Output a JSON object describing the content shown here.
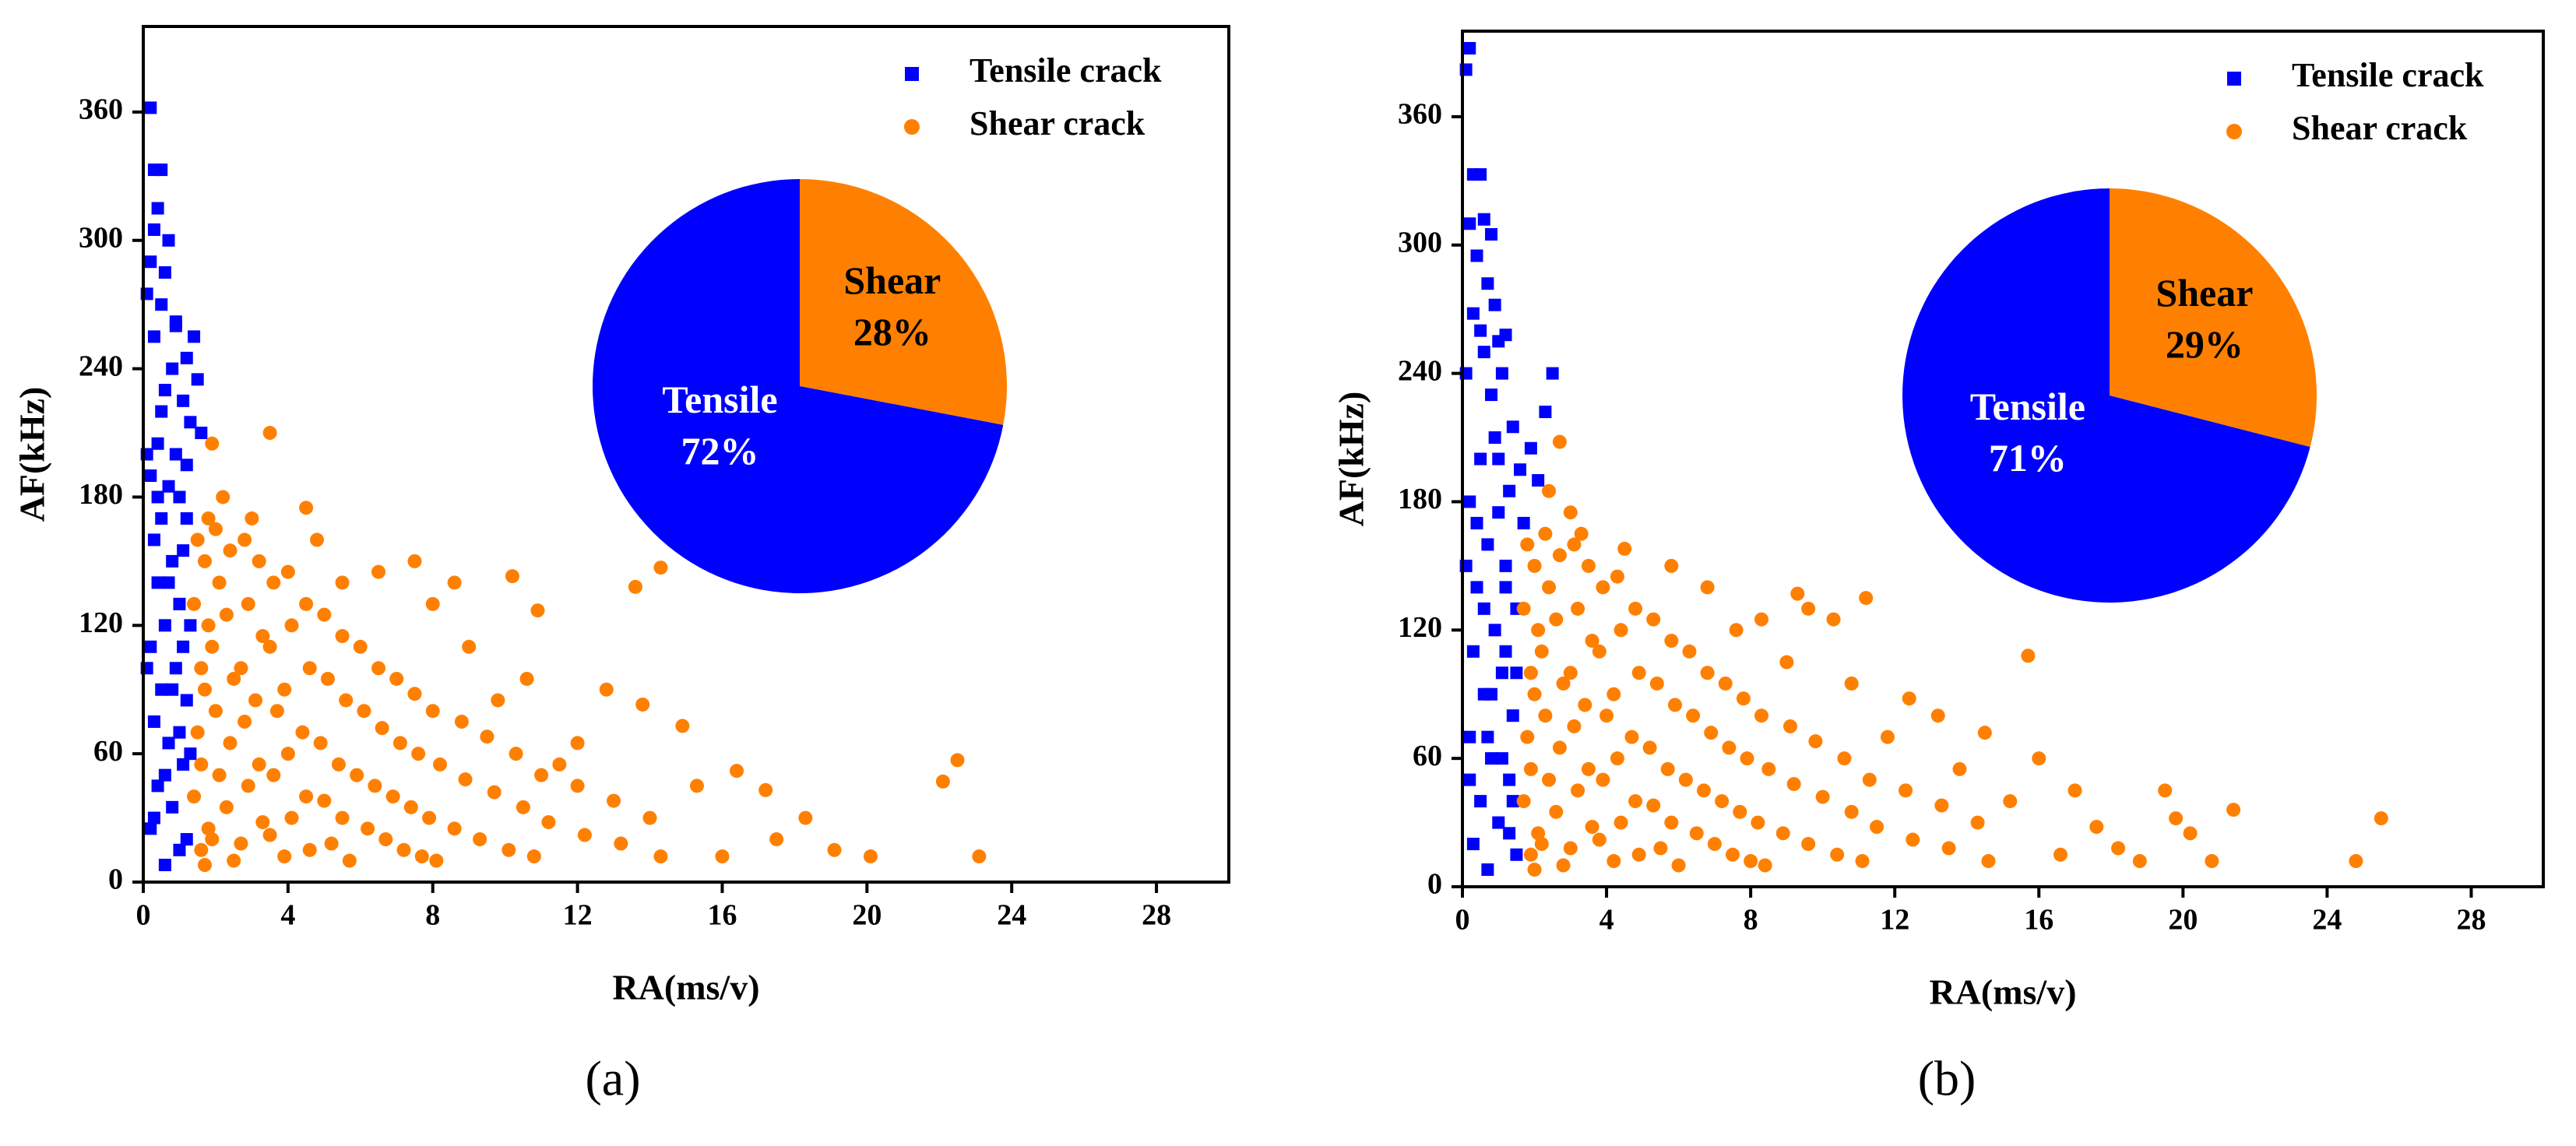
{
  "chart_data": [
    {
      "type": "scatter",
      "xlabel": "RA(ms/v)",
      "ylabel": "AF(kHz)",
      "caption": "(a)",
      "xlim": [
        0,
        30
      ],
      "ylim": [
        0,
        400
      ],
      "xticks": [
        0,
        4,
        8,
        12,
        16,
        20,
        24,
        28
      ],
      "yticks": [
        0,
        60,
        120,
        180,
        240,
        300,
        360
      ],
      "legend": "upper right",
      "series": [
        {
          "name": "Tensile crack",
          "color": "#0000ff",
          "marker": "square",
          "x": [
            0.2,
            0.3,
            0.5,
            0.4,
            0.3,
            0.7,
            0.6,
            0.2,
            0.1,
            0.5,
            0.9,
            0.3,
            1.4,
            1.2,
            0.8,
            1.5,
            0.6,
            1.1,
            1.3,
            1.6,
            0.4,
            0.9,
            1.2,
            0.2,
            0.7,
            1.0,
            0.5,
            0.3,
            1.1,
            0.8,
            0.4,
            1.0,
            0.6,
            0.2,
            0.9,
            0.5,
            1.2,
            0.3,
            0.7,
            1.1,
            0.4,
            0.8,
            0.2,
            1.0,
            0.6,
            1.3,
            1.3,
            0.1,
            0.1,
            0.9,
            1.2,
            0.5,
            0.7,
            1.0,
            0.3,
            1.2,
            0.8,
            0.4,
            0.6,
            1.1
          ],
          "values": [
            362,
            333,
            333,
            315,
            305,
            300,
            285,
            290,
            275,
            270,
            262,
            255,
            255,
            245,
            240,
            235,
            230,
            225,
            215,
            210,
            205,
            200,
            195,
            190,
            185,
            180,
            170,
            160,
            155,
            150,
            140,
            130,
            120,
            110,
            100,
            90,
            85,
            75,
            65,
            55,
            45,
            35,
            25,
            15,
            8,
            120,
            60,
            200,
            100,
            260,
            170,
            220,
            140,
            70,
            30,
            20,
            90,
            180,
            50,
            110
          ]
        },
        {
          "name": "Shear crack",
          "color": "#ff8000",
          "marker": "circle",
          "x": [
            1.9,
            3.5,
            4.5,
            14.3,
            13.6,
            10.9,
            10.2,
            7.5,
            8.6,
            22.5,
            22.1,
            23.1,
            20.1,
            19.1,
            18.3,
            17.5,
            17.2,
            16.4,
            16.0,
            15.3,
            14.9,
            13.8,
            12.8,
            12.0,
            11.5,
            10.6,
            9.8,
            9.0,
            8.0,
            6.5,
            5.5,
            4.8,
            3.0,
            2.2,
            1.8,
            1.5,
            1.4,
            1.6,
            1.5,
            1.4,
            1.6,
            1.7,
            1.8,
            1.7,
            1.6,
            1.8,
            1.7,
            2.0,
            2.1,
            1.9,
            2.0,
            2.1,
            1.9,
            2.4,
            2.3,
            2.5,
            2.4,
            2.3,
            2.5,
            2.8,
            2.9,
            2.7,
            2.8,
            2.9,
            2.7,
            3.2,
            3.3,
            3.1,
            3.2,
            3.3,
            3.6,
            3.5,
            3.7,
            3.6,
            3.5,
            4.0,
            4.1,
            3.9,
            4.0,
            4.1,
            3.9,
            4.5,
            4.6,
            4.4,
            4.5,
            4.6,
            5.0,
            5.1,
            4.9,
            5.0,
            5.2,
            5.5,
            5.6,
            5.4,
            5.5,
            5.7,
            6.0,
            6.1,
            5.9,
            6.2,
            6.5,
            6.6,
            6.4,
            6.7,
            7.0,
            7.1,
            6.9,
            7.2,
            7.5,
            7.6,
            7.4,
            7.7,
            8.0,
            8.2,
            7.9,
            8.1,
            8.8,
            8.9,
            8.6,
            9.5,
            9.7,
            9.3,
            10.3,
            10.5,
            10.1,
            11.0,
            11.2,
            10.8,
            12.0,
            12.2,
            13.0,
            13.2,
            14.0,
            14.3
          ],
          "values": [
            205,
            210,
            175,
            147,
            138,
            127,
            143,
            150,
            140,
            57,
            47,
            12,
            12,
            15,
            30,
            20,
            43,
            52,
            12,
            45,
            73,
            83,
            90,
            65,
            55,
            95,
            85,
            110,
            130,
            145,
            140,
            160,
            170,
            180,
            170,
            160,
            130,
            100,
            70,
            40,
            15,
            150,
            120,
            90,
            55,
            25,
            8,
            165,
            140,
            110,
            80,
            50,
            20,
            155,
            125,
            95,
            65,
            35,
            10,
            160,
            130,
            100,
            75,
            45,
            18,
            150,
            115,
            85,
            55,
            28,
            140,
            110,
            80,
            50,
            22,
            145,
            120,
            90,
            60,
            30,
            12,
            130,
            100,
            70,
            40,
            15,
            125,
            95,
            65,
            38,
            18,
            115,
            85,
            55,
            30,
            10,
            110,
            80,
            50,
            25,
            100,
            72,
            45,
            20,
            95,
            65,
            40,
            15,
            88,
            60,
            35,
            12,
            80,
            55,
            30,
            10,
            75,
            48,
            25,
            68,
            42,
            20,
            60,
            35,
            15,
            50,
            28,
            12,
            45,
            22,
            38,
            18,
            30,
            12
          ]
        }
      ]
    },
    {
      "type": "pie",
      "labels": [
        "Tensile",
        "Shear"
      ],
      "values": [
        72,
        28
      ],
      "value_labels": [
        "72%",
        "28%"
      ],
      "colors": [
        "#0000ff",
        "#ff8000"
      ],
      "text_colors": [
        "#ffffff",
        "#000000"
      ]
    },
    {
      "type": "scatter",
      "xlabel": "RA(ms/v)",
      "ylabel": "AF(kHz)",
      "caption": "(b)",
      "xlim": [
        0,
        30
      ],
      "ylim": [
        0,
        400
      ],
      "xticks": [
        0,
        4,
        8,
        12,
        16,
        20,
        24,
        28
      ],
      "yticks": [
        0,
        60,
        120,
        180,
        240,
        300,
        360
      ],
      "legend": "upper right",
      "series": [
        {
          "name": "Tensile crack",
          "color": "#0000ff",
          "marker": "square",
          "x": [
            0.2,
            0.1,
            0.3,
            0.5,
            0.6,
            0.2,
            0.8,
            0.4,
            0.7,
            0.9,
            0.3,
            1.0,
            1.2,
            0.6,
            1.1,
            2.5,
            2.3,
            1.4,
            0.8,
            1.9,
            1.6,
            2.1,
            1.3,
            0.5,
            1.0,
            1.7,
            0.2,
            0.7,
            1.2,
            0.4,
            1.5,
            0.9,
            0.3,
            1.1,
            0.6,
            1.4,
            0.2,
            0.8,
            1.3,
            0.5,
            1.0,
            0.3,
            1.5,
            0.7,
            1.2,
            0.1,
            0.1,
            0.9,
            0.4,
            1.1,
            1.4,
            0.6,
            0.8,
            1.3,
            0.2,
            1.0,
            0.5,
            1.2,
            0.7,
            1.5
          ],
          "values": [
            392,
            382,
            333,
            333,
            312,
            310,
            305,
            295,
            282,
            272,
            268,
            255,
            258,
            250,
            240,
            240,
            222,
            215,
            230,
            205,
            195,
            190,
            185,
            200,
            175,
            170,
            180,
            160,
            150,
            140,
            130,
            120,
            110,
            100,
            90,
            80,
            70,
            60,
            50,
            40,
            30,
            20,
            15,
            8,
            110,
            150,
            240,
            210,
            170,
            60,
            40,
            130,
            90,
            25,
            50,
            200,
            260,
            140,
            70,
            100
          ]
        },
        {
          "name": "Shear crack",
          "color": "#ff8000",
          "marker": "circle",
          "x": [
            2.7,
            2.4,
            3.3,
            4.5,
            5.8,
            6.8,
            8.3,
            9.3,
            9.6,
            11.2,
            10.3,
            15.7,
            12.4,
            13.2,
            14.5,
            16.0,
            17.0,
            18.2,
            18.8,
            19.5,
            19.8,
            20.2,
            20.8,
            21.4,
            24.8,
            25.5,
            17.6,
            16.6,
            15.2,
            13.8,
            11.8,
            10.8,
            9.0,
            7.6,
            3.0,
            1.8,
            1.7,
            1.9,
            1.8,
            1.7,
            1.9,
            2.0,
            2.1,
            2.0,
            1.9,
            2.1,
            2.0,
            2.3,
            2.4,
            2.2,
            2.3,
            2.4,
            2.2,
            2.7,
            2.6,
            2.8,
            2.7,
            2.6,
            2.8,
            3.1,
            3.2,
            3.0,
            3.1,
            3.2,
            3.0,
            3.5,
            3.6,
            3.4,
            3.5,
            3.6,
            3.9,
            3.8,
            4.0,
            3.9,
            3.8,
            4.3,
            4.4,
            4.2,
            4.3,
            4.4,
            4.2,
            4.8,
            4.9,
            4.7,
            4.8,
            4.9,
            5.3,
            5.4,
            5.2,
            5.3,
            5.5,
            5.8,
            5.9,
            5.7,
            5.8,
            6.0,
            6.3,
            6.4,
            6.2,
            6.5,
            6.8,
            6.9,
            6.7,
            7.0,
            7.3,
            7.4,
            7.2,
            7.5,
            7.8,
            7.9,
            7.7,
            8.0,
            8.3,
            8.5,
            8.2,
            8.4,
            9.1,
            9.2,
            8.9,
            9.8,
            10.0,
            9.6,
            10.6,
            10.8,
            10.4,
            11.3,
            11.5,
            11.1,
            12.3,
            12.5,
            13.3,
            13.5,
            14.3,
            14.6
          ],
          "values": [
            208,
            185,
            165,
            158,
            150,
            140,
            125,
            137,
            130,
            135,
            125,
            108,
            88,
            80,
            72,
            60,
            45,
            18,
            12,
            45,
            32,
            25,
            12,
            36,
            12,
            32,
            28,
            15,
            40,
            55,
            70,
            95,
            105,
            120,
            175,
            160,
            130,
            100,
            70,
            40,
            15,
            150,
            120,
            90,
            55,
            25,
            8,
            165,
            140,
            110,
            80,
            50,
            20,
            155,
            125,
            95,
            65,
            35,
            10,
            160,
            130,
            100,
            75,
            45,
            18,
            150,
            115,
            85,
            55,
            28,
            140,
            110,
            80,
            50,
            22,
            145,
            120,
            90,
            60,
            30,
            12,
            130,
            100,
            70,
            40,
            15,
            125,
            95,
            65,
            38,
            18,
            115,
            85,
            55,
            30,
            10,
            110,
            80,
            50,
            25,
            100,
            72,
            45,
            20,
            95,
            65,
            40,
            15,
            88,
            60,
            35,
            12,
            80,
            55,
            30,
            10,
            75,
            48,
            25,
            68,
            42,
            20,
            60,
            35,
            15,
            50,
            28,
            12,
            45,
            22,
            38,
            18,
            30,
            12
          ]
        }
      ]
    },
    {
      "type": "pie",
      "labels": [
        "Tensile",
        "Shear"
      ],
      "values": [
        71,
        29
      ],
      "value_labels": [
        "71%",
        "29%"
      ],
      "colors": [
        "#0000ff",
        "#ff8000"
      ],
      "text_colors": [
        "#ffffff",
        "#000000"
      ]
    }
  ]
}
